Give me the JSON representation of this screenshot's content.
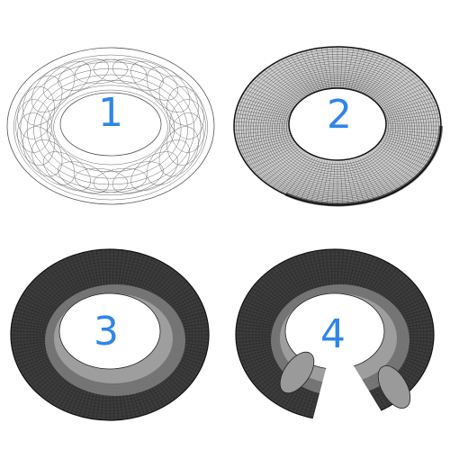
{
  "figure": {
    "label_color": "#2f86e8",
    "panels": [
      {
        "label": "1",
        "style": "sparse-wireframe",
        "cutaway": false
      },
      {
        "label": "2",
        "style": "dense-wireframe",
        "cutaway": false
      },
      {
        "label": "3",
        "style": "dense-shaded",
        "cutaway": false
      },
      {
        "label": "4",
        "style": "dense-shaded",
        "cutaway": true
      }
    ]
  }
}
